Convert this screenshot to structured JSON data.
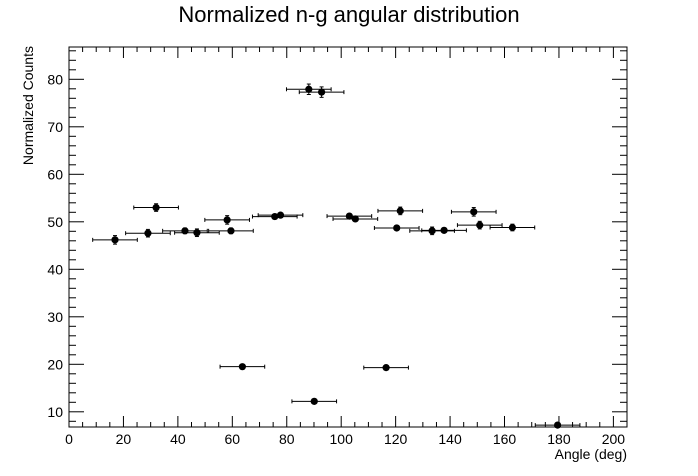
{
  "chart_data": {
    "type": "scatter",
    "title": "Normalized n-g angular distribution",
    "xlabel": "Angle (deg)",
    "ylabel": "Normalized Counts",
    "xlim": [
      0,
      205
    ],
    "ylim": [
      6.8,
      86.8
    ],
    "x_ticks": [
      0,
      20,
      40,
      60,
      80,
      100,
      120,
      140,
      160,
      180,
      200
    ],
    "y_ticks": [
      10,
      20,
      30,
      40,
      50,
      60,
      70,
      80
    ],
    "grid": false,
    "marker_color": "#000000",
    "points": [
      {
        "x": 16.9,
        "y": 46.2,
        "xerr": 8.2,
        "yerr": 0.9
      },
      {
        "x": 29.0,
        "y": 47.6,
        "xerr": 8.2,
        "yerr": 0.8
      },
      {
        "x": 32.0,
        "y": 53.0,
        "xerr": 8.2,
        "yerr": 0.8
      },
      {
        "x": 42.6,
        "y": 48.1,
        "xerr": 8.2,
        "yerr": 0.6
      },
      {
        "x": 47.0,
        "y": 47.7,
        "xerr": 8.2,
        "yerr": 0.8
      },
      {
        "x": 58.1,
        "y": 50.4,
        "xerr": 8.2,
        "yerr": 0.9
      },
      {
        "x": 59.5,
        "y": 48.1,
        "xerr": 8.2,
        "yerr": 0.6
      },
      {
        "x": 63.7,
        "y": 19.5,
        "xerr": 8.2,
        "yerr": 0.5
      },
      {
        "x": 75.6,
        "y": 51.1,
        "xerr": 8.2,
        "yerr": 0.5
      },
      {
        "x": 77.7,
        "y": 51.4,
        "xerr": 8.2,
        "yerr": 0.5
      },
      {
        "x": 88.1,
        "y": 77.9,
        "xerr": 8.2,
        "yerr": 1.1
      },
      {
        "x": 90.1,
        "y": 12.2,
        "xerr": 8.2,
        "yerr": 0.5
      },
      {
        "x": 92.8,
        "y": 77.3,
        "xerr": 8.2,
        "yerr": 1.1
      },
      {
        "x": 103.0,
        "y": 51.2,
        "xerr": 8.2,
        "yerr": 0.5
      },
      {
        "x": 105.2,
        "y": 50.6,
        "xerr": 8.2,
        "yerr": 0.5
      },
      {
        "x": 116.5,
        "y": 19.3,
        "xerr": 8.2,
        "yerr": 0.5
      },
      {
        "x": 120.4,
        "y": 48.7,
        "xerr": 8.2,
        "yerr": 0.5
      },
      {
        "x": 121.7,
        "y": 52.3,
        "xerr": 8.2,
        "yerr": 0.8
      },
      {
        "x": 133.4,
        "y": 48.1,
        "xerr": 8.2,
        "yerr": 0.8
      },
      {
        "x": 137.8,
        "y": 48.2,
        "xerr": 8.2,
        "yerr": 0.5
      },
      {
        "x": 148.7,
        "y": 52.1,
        "xerr": 8.2,
        "yerr": 0.9
      },
      {
        "x": 150.9,
        "y": 49.3,
        "xerr": 8.2,
        "yerr": 0.8
      },
      {
        "x": 162.9,
        "y": 48.8,
        "xerr": 8.2,
        "yerr": 0.7
      },
      {
        "x": 179.5,
        "y": 7.2,
        "xerr": 8.2,
        "yerr": 0.4
      }
    ]
  }
}
